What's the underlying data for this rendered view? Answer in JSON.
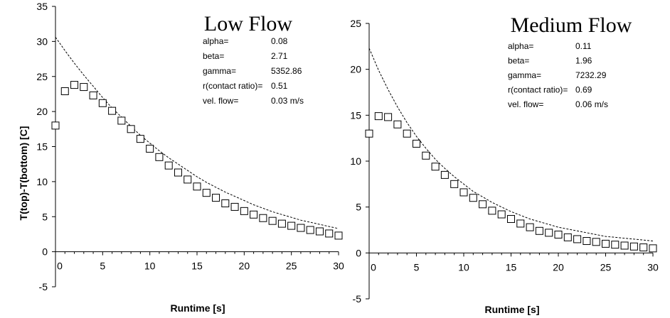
{
  "chart_data": [
    {
      "type": "scatter",
      "title": "Low Flow",
      "xlabel": "Runtime [s]",
      "ylabel": "T(top)-T(bottom) [C]",
      "xlim": [
        0,
        30
      ],
      "ylim": [
        -5,
        35
      ],
      "xticks": [
        "0",
        "5",
        "10",
        "15",
        "20",
        "25",
        "30"
      ],
      "yticks": [
        "-5",
        "0",
        "5",
        "10",
        "15",
        "20",
        "25",
        "30",
        "35"
      ],
      "grid": false,
      "params": [
        {
          "label": "alpha=",
          "value": "0.08"
        },
        {
          "label": "beta=",
          "value": "2.71"
        },
        {
          "label": "gamma=",
          "value": "5352.86"
        },
        {
          "label": "r(contact ratio)=",
          "value": "0.51"
        },
        {
          "label": "vel. flow=",
          "value": "0.03 m/s"
        }
      ],
      "series": [
        {
          "marker": "square",
          "x": [
            0,
            1,
            2,
            3,
            4,
            5,
            6,
            7,
            8,
            9,
            10,
            11,
            12,
            13,
            14,
            15,
            16,
            17,
            18,
            19,
            20,
            21,
            22,
            23,
            24,
            25,
            26,
            27,
            28,
            29,
            30
          ],
          "y": [
            18.0,
            22.9,
            23.8,
            23.5,
            22.3,
            21.2,
            20.1,
            18.7,
            17.5,
            16.1,
            14.7,
            13.5,
            12.3,
            11.3,
            10.3,
            9.3,
            8.4,
            7.7,
            6.9,
            6.4,
            5.8,
            5.3,
            4.8,
            4.4,
            4.0,
            3.7,
            3.4,
            3.1,
            2.9,
            2.6,
            2.3
          ]
        },
        {
          "style": "dashed",
          "x": [
            0,
            1,
            2,
            3,
            4,
            5,
            6,
            7,
            8,
            9,
            10,
            11,
            12,
            13,
            14,
            15,
            16,
            17,
            18,
            19,
            20,
            21,
            22,
            23,
            24,
            25,
            26,
            27,
            28,
            29,
            30
          ],
          "y": [
            30.6,
            28.7,
            26.9,
            25.2,
            23.6,
            22.0,
            20.5,
            19.2,
            17.9,
            16.6,
            15.5,
            14.4,
            13.4,
            12.5,
            11.6,
            10.7,
            9.9,
            9.2,
            8.5,
            7.9,
            7.3,
            6.7,
            6.2,
            5.7,
            5.3,
            4.9,
            4.5,
            4.2,
            3.9,
            3.6,
            3.3
          ]
        }
      ]
    },
    {
      "type": "scatter",
      "title": "Medium Flow",
      "xlabel": "Runtime [s]",
      "ylabel": "",
      "xlim": [
        0,
        30
      ],
      "ylim": [
        -5,
        25
      ],
      "xticks": [
        "0",
        "5",
        "10",
        "15",
        "20",
        "25",
        "30"
      ],
      "yticks": [
        "-5",
        "0",
        "5",
        "10",
        "15",
        "20",
        "25"
      ],
      "grid": false,
      "params": [
        {
          "label": "alpha=",
          "value": "0.11"
        },
        {
          "label": "beta=",
          "value": "1.96"
        },
        {
          "label": "gamma=",
          "value": "7232.29"
        },
        {
          "label": "r(contact ratio)=",
          "value": "0.69"
        },
        {
          "label": "vel. flow=",
          "value": "0.06 m/s"
        }
      ],
      "series": [
        {
          "marker": "square",
          "x": [
            0,
            1,
            2,
            3,
            4,
            5,
            6,
            7,
            8,
            9,
            10,
            11,
            12,
            13,
            14,
            15,
            16,
            17,
            18,
            19,
            20,
            21,
            22,
            23,
            24,
            25,
            26,
            27,
            28,
            29,
            30
          ],
          "y": [
            13.0,
            14.9,
            14.8,
            14.0,
            13.0,
            11.9,
            10.6,
            9.4,
            8.5,
            7.5,
            6.6,
            6.0,
            5.3,
            4.6,
            4.2,
            3.7,
            3.2,
            2.8,
            2.4,
            2.2,
            2.0,
            1.7,
            1.5,
            1.3,
            1.2,
            1.0,
            0.9,
            0.8,
            0.7,
            0.6,
            0.5
          ]
        },
        {
          "style": "dashed",
          "x": [
            0,
            1,
            2,
            3,
            4,
            5,
            6,
            7,
            8,
            9,
            10,
            11,
            12,
            13,
            14,
            15,
            16,
            17,
            18,
            19,
            20,
            21,
            22,
            23,
            24,
            25,
            26,
            27,
            28,
            29,
            30
          ],
          "y": [
            22.3,
            19.9,
            17.8,
            15.9,
            14.2,
            12.7,
            11.4,
            10.2,
            9.2,
            8.3,
            7.5,
            6.7,
            6.1,
            5.5,
            5.0,
            4.5,
            4.1,
            3.7,
            3.4,
            3.1,
            2.8,
            2.6,
            2.4,
            2.2,
            2.0,
            1.8,
            1.7,
            1.6,
            1.5,
            1.4,
            1.3
          ]
        }
      ]
    }
  ]
}
